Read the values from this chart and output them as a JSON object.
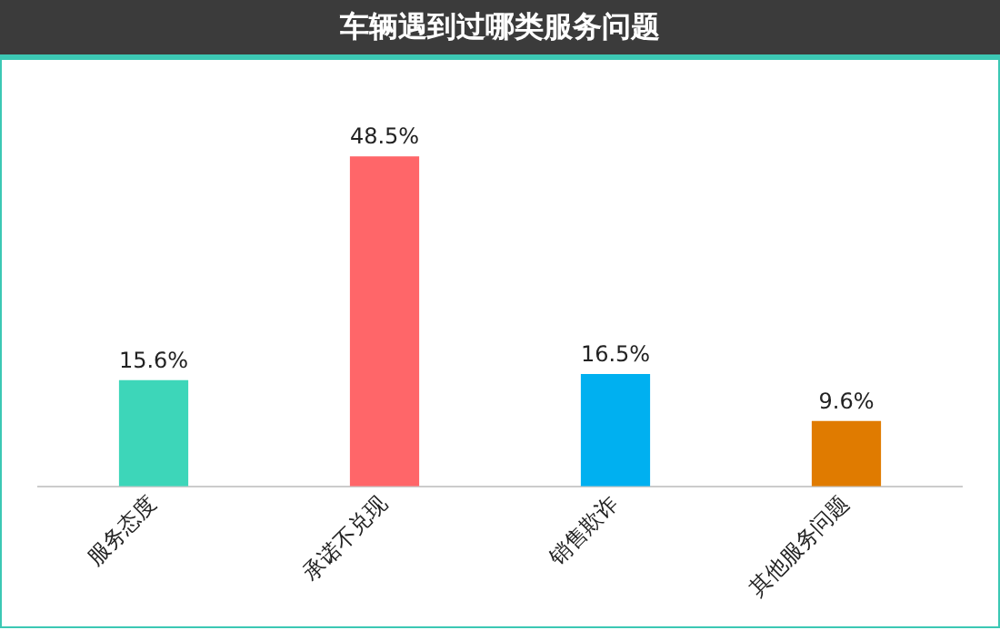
{
  "chart_data": {
    "type": "bar",
    "title": "车辆遇到过哪类服务问题",
    "categories": [
      "服务态度",
      "承诺不兑现",
      "销售欺诈",
      "其他服务问题"
    ],
    "values": [
      15.6,
      48.5,
      16.5,
      9.6
    ],
    "colors": [
      "#3dd6b9",
      "#ff6669",
      "#00b0f0",
      "#e07b00"
    ],
    "value_labels": [
      "15.6%",
      "48.5%",
      "16.5%",
      "9.6%"
    ],
    "grid": false,
    "legend": false
  }
}
